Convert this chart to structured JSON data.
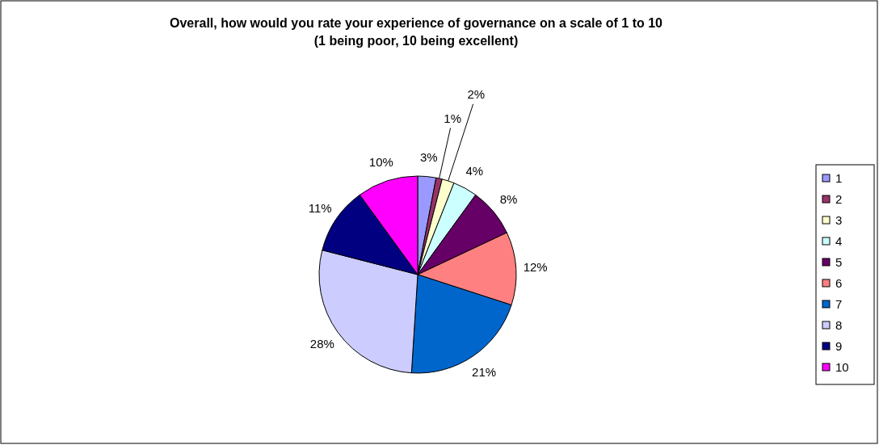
{
  "chart_data": {
    "type": "pie",
    "title": "Overall, how would you rate your experience of governance on a scale of 1 to 10 (1 being poor, 10 being excellent)",
    "categories": [
      "1",
      "2",
      "3",
      "4",
      "5",
      "6",
      "7",
      "8",
      "9",
      "10"
    ],
    "values": [
      3,
      1,
      2,
      4,
      8,
      12,
      21,
      28,
      11,
      10
    ],
    "colors": [
      "#9999ff",
      "#993366",
      "#ffffcc",
      "#ccffff",
      "#660066",
      "#ff8080",
      "#0066cc",
      "#ccccff",
      "#000080",
      "#ff00ff"
    ],
    "value_labels": [
      "3%",
      "1%",
      "2%",
      "4%",
      "8%",
      "12%",
      "21%",
      "28%",
      "11%",
      "10%"
    ],
    "legend": "right"
  }
}
